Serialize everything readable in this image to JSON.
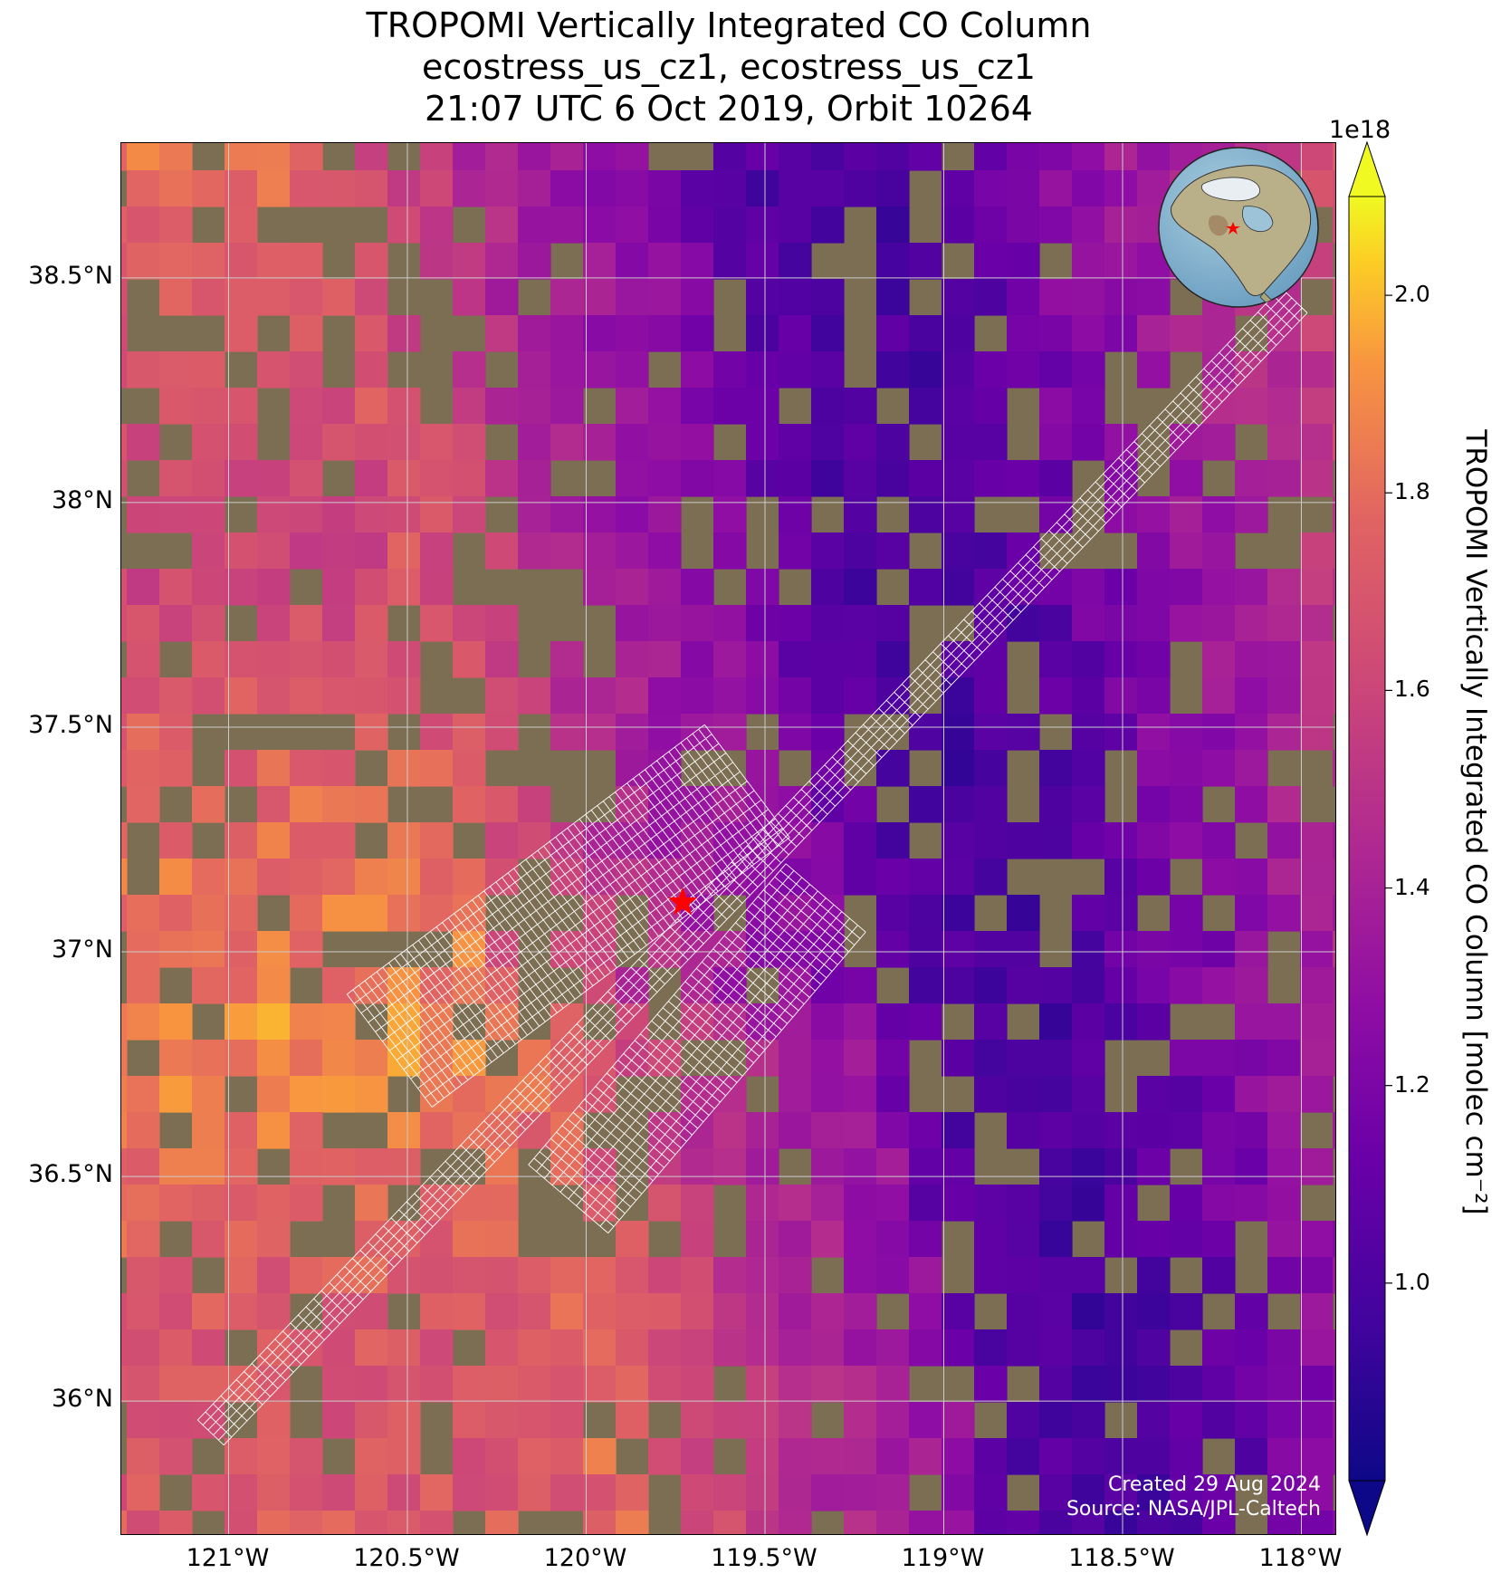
{
  "title": {
    "line1": "TROPOMI Vertically Integrated CO Column",
    "line2": "ecostress_us_cz1, ecostress_us_cz1",
    "line3": "21:07 UTC 6 Oct 2019, Orbit 10264"
  },
  "map": {
    "lon_range": [
      -121.3,
      -117.9
    ],
    "lat_range": [
      35.7,
      38.8
    ],
    "lat_ticks": [
      {
        "value": 38.5,
        "label": "38.5°N"
      },
      {
        "value": 38.0,
        "label": "38°N"
      },
      {
        "value": 37.5,
        "label": "37.5°N"
      },
      {
        "value": 37.0,
        "label": "37°N"
      },
      {
        "value": 36.5,
        "label": "36.5°N"
      },
      {
        "value": 36.0,
        "label": "36°N"
      }
    ],
    "lon_ticks": [
      {
        "value": -121.0,
        "label": "121°W"
      },
      {
        "value": -120.5,
        "label": "120.5°W"
      },
      {
        "value": -120.0,
        "label": "120°W"
      },
      {
        "value": -119.5,
        "label": "119.5°W"
      },
      {
        "value": -119.0,
        "label": "119°W"
      },
      {
        "value": -118.5,
        "label": "118.5°W"
      },
      {
        "value": -118.0,
        "label": "118°W"
      }
    ],
    "gridlines": true,
    "basemap": "satellite imagery",
    "target_marker": {
      "lon": -119.73,
      "lat": 37.11,
      "symbol": "red-star"
    },
    "inset_globe": {
      "position": "top-right",
      "region": "North America",
      "marker": "red-star"
    },
    "overlay": "ECOSTRESS footprint grid (white)",
    "colors": {
      "star": "#ff0000",
      "grid": "#ffffff",
      "gridline": "#cccccc"
    }
  },
  "credits": {
    "line1": "Created 29 Aug 2024",
    "line2": "Source: NASA/JPL-Caltech"
  },
  "colorbar": {
    "label": "TROPOMI Vertically Integrated CO Column [molec cm⁻²]",
    "multiplier": "1e18",
    "colormap": "plasma",
    "range": [
      0.8,
      2.1
    ],
    "extend": "both",
    "ticks": [
      {
        "value": 1.0,
        "label": "1.0"
      },
      {
        "value": 1.2,
        "label": "1.2"
      },
      {
        "value": 1.4,
        "label": "1.4"
      },
      {
        "value": 1.6,
        "label": "1.6"
      },
      {
        "value": 1.8,
        "label": "1.8"
      },
      {
        "value": 2.0,
        "label": "2.0"
      }
    ]
  },
  "chart_data": {
    "type": "heatmap",
    "title": "TROPOMI Vertically Integrated CO Column",
    "subtitle": "ecostress_us_cz1, ecostress_us_cz1 / 21:07 UTC 6 Oct 2019, Orbit 10264",
    "units": "molec cm⁻² (×1e18)",
    "xlim": [
      -121.3,
      -117.9
    ],
    "ylim": [
      35.7,
      38.8
    ],
    "value_range": [
      0.8,
      2.1
    ],
    "spatial_pattern": [
      {
        "region": "west (Central Valley, ~121.3°W–120.3°W)",
        "approx_value": 1.75
      },
      {
        "region": "central (~120°W–119.5°W)",
        "approx_value": 1.6
      },
      {
        "region": "east (Sierra Nevada, ~119°W–118.4°W)",
        "approx_value": 1.05
      },
      {
        "region": "far east (~118.3°W)",
        "approx_value": 1.3
      }
    ]
  }
}
